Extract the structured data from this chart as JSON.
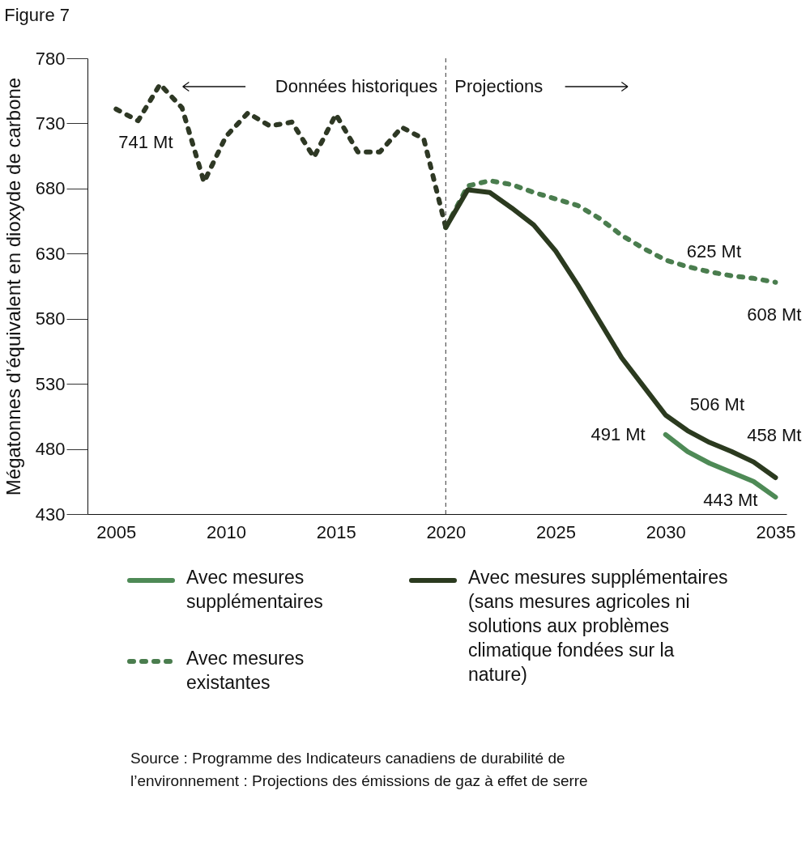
{
  "chart_data": {
    "type": "line",
    "title": "Figure 7",
    "ylabel": "Mégatonnes d’équivalent en dioxyde de carbone",
    "xlim": [
      2003.7,
      2035.5
    ],
    "xticks": [
      2005,
      2010,
      2015,
      2020,
      2025,
      2030,
      2035
    ],
    "ylim": [
      430,
      780
    ],
    "yticks": [
      430,
      480,
      530,
      580,
      630,
      680,
      730,
      780
    ],
    "grid": false,
    "legend": "bottom",
    "marker": "none",
    "series": [
      {
        "color": "#2e3824",
        "line_style": "dashed",
        "x": [
          2005,
          2006,
          2007,
          2008,
          2009,
          2010,
          2011,
          2012,
          2013,
          2014,
          2015,
          2016,
          2017,
          2018,
          2019,
          2020
        ],
        "values": [
          741,
          732,
          760,
          742,
          685,
          720,
          738,
          728,
          731,
          704,
          737,
          708,
          708,
          727,
          718,
          650
        ]
      },
      {
        "name": "Avec mesures supplémentaires",
        "color": "#4e8a56",
        "line_style": "solid",
        "x": [
          2030,
          2031,
          2032,
          2033,
          2034,
          2035
        ],
        "values": [
          491,
          478,
          469,
          462,
          455,
          443
        ]
      },
      {
        "name": "Avec mesures existantes",
        "color": "#4a7d4e",
        "line_style": "dashed",
        "x": [
          2020,
          2021,
          2022,
          2023,
          2024,
          2025,
          2026,
          2027,
          2028,
          2029,
          2030,
          2031,
          2032,
          2033,
          2034,
          2035
        ],
        "values": [
          650,
          682,
          686,
          683,
          677,
          672,
          667,
          657,
          644,
          634,
          625,
          620,
          616,
          613,
          611,
          608
        ]
      },
      {
        "name": "Avec mesures supplémentaires (sans mesures agricoles ni solutions aux problèmes climatique fondées sur la nature)",
        "color": "#2b3a1f",
        "line_style": "solid",
        "x": [
          2020,
          2021,
          2022,
          2023,
          2024,
          2025,
          2026,
          2027,
          2028,
          2029,
          2030,
          2031,
          2032,
          2033,
          2034,
          2035
        ],
        "values": [
          650,
          679,
          677,
          665,
          652,
          632,
          606,
          578,
          550,
          528,
          506,
          494,
          485,
          478,
          470,
          458
        ]
      }
    ],
    "ref_lines": [
      {
        "axis": "x",
        "value": 2020,
        "color": "#555555",
        "line_style": "dashed"
      }
    ],
    "annotations": [
      "Données historiques",
      "Projections",
      {
        "text": "741 Mt",
        "x": 2005,
        "y": 741
      },
      {
        "text": "625 Mt",
        "x": 2030,
        "y": 625
      },
      {
        "text": "608 Mt",
        "x": 2035,
        "y": 608
      },
      {
        "text": "506 Mt",
        "x": 2030,
        "y": 506
      },
      {
        "text": "491 Mt",
        "x": 2030,
        "y": 491
      },
      {
        "text": "458 Mt",
        "x": 2035,
        "y": 458
      },
      {
        "text": "443 Mt",
        "x": 2035,
        "y": 443
      },
      "Source : Programme des Indicateurs canadiens de durabilité de l’environnement : Projections des émissions de gaz à effet de serre"
    ]
  }
}
